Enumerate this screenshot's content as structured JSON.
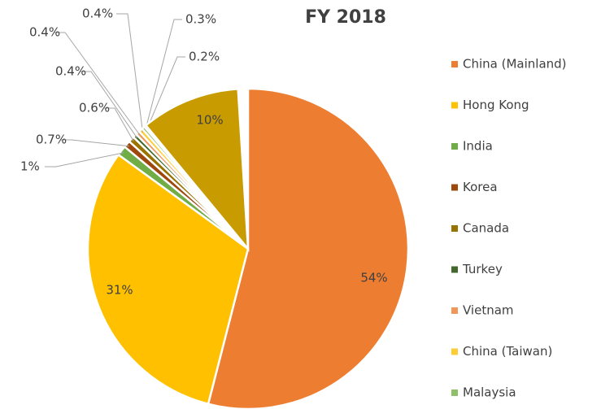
{
  "chart_data": {
    "type": "pie",
    "title": "FY 2018",
    "categories": [
      "China (Mainland)",
      "Hong Kong",
      "India",
      "Korea",
      "Canada",
      "Turkey",
      "Vietnam",
      "China (Taiwan)",
      "Malaysia",
      null,
      null
    ],
    "values": [
      54,
      31,
      1,
      0.7,
      0.6,
      0.4,
      0.4,
      0.4,
      0.3,
      0.2,
      10
    ],
    "value_labels": [
      "54%",
      "31%",
      "1%",
      "0.7%",
      "0.6%",
      "0.4%",
      "0.4%",
      "0.4%",
      "0.3%",
      "0.2%",
      "10%"
    ],
    "colors": [
      "#ed7d31",
      "#ffc000",
      "#70ad47",
      "#9e480e",
      "#997300",
      "#43682b",
      "#f1975a",
      "#ffcd33",
      "#8cc168",
      "#d0d0d0",
      "#c89b00"
    ],
    "legend": "right"
  }
}
